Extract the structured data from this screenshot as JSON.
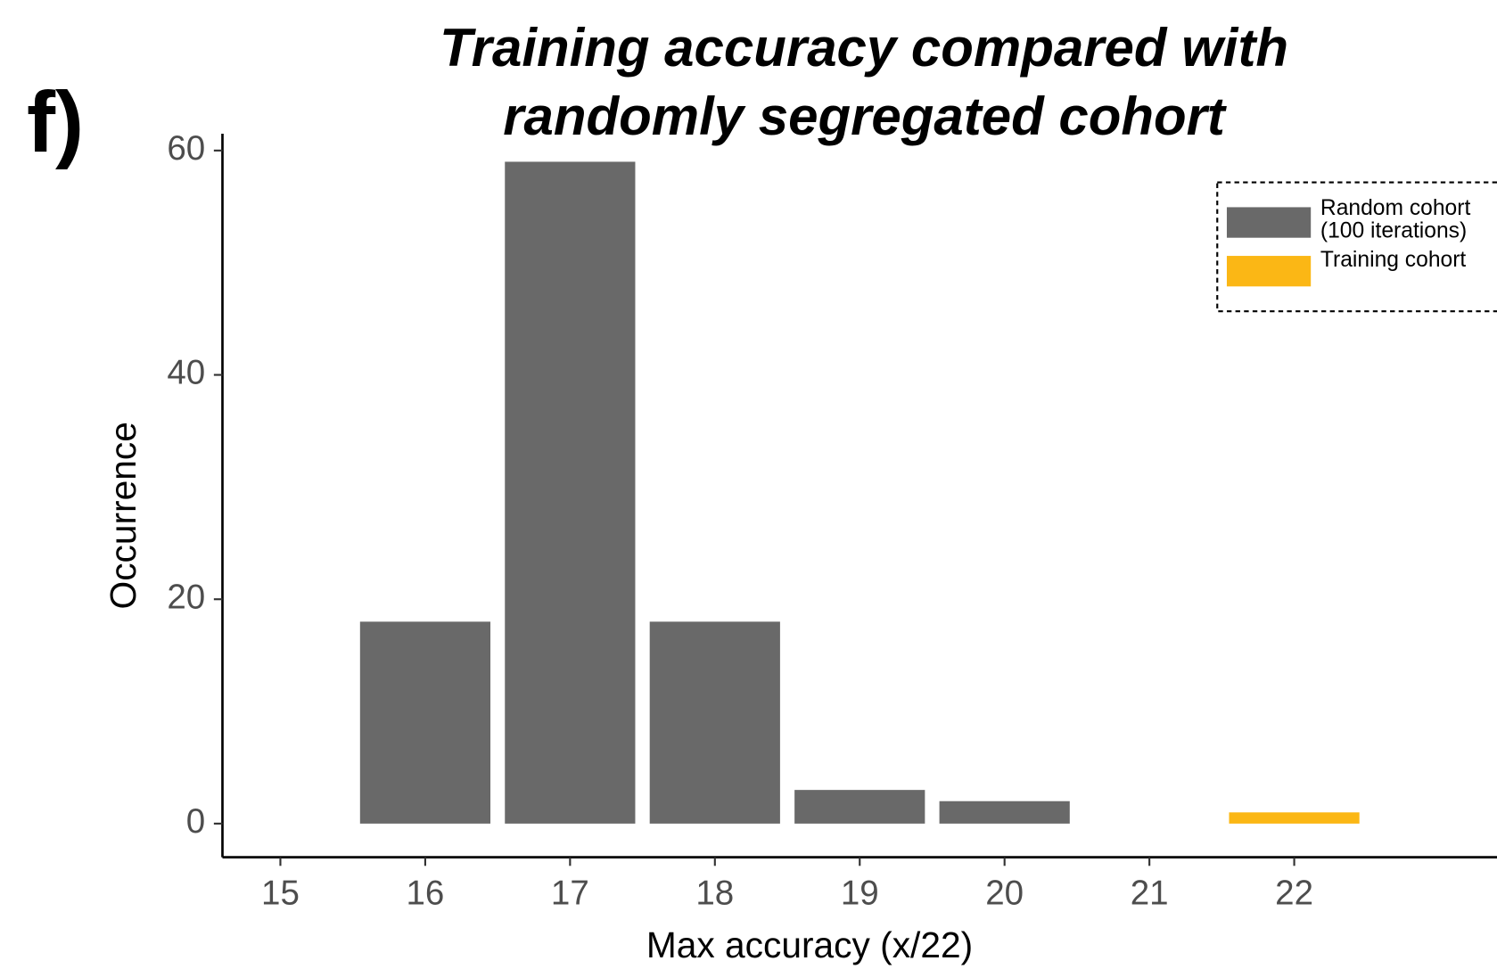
{
  "panel_label": "f)",
  "chart_data": {
    "type": "bar",
    "title": "Training accuracy compared with randomly segregated cohort",
    "x_label": "Max accuracy (x/22)",
    "y_label": "Occurrence",
    "series": [
      {
        "name": "Random cohort (100 iterations)",
        "color": "#696969",
        "x": [
          16,
          17,
          18,
          19,
          20
        ],
        "values": [
          18,
          59,
          18,
          3,
          2
        ]
      },
      {
        "name": "Training cohort",
        "color": "#fbb715",
        "x": [
          22
        ],
        "values": [
          1
        ]
      }
    ],
    "xlim": [
      14.6,
      23.4
    ],
    "xticks": [
      15,
      16,
      17,
      18,
      19,
      20,
      21,
      22
    ],
    "ylim": [
      -3,
      61.5
    ],
    "yticks": [
      0,
      20,
      40,
      60
    ],
    "bar_width": 0.9,
    "grid": false,
    "legend": "top right"
  }
}
